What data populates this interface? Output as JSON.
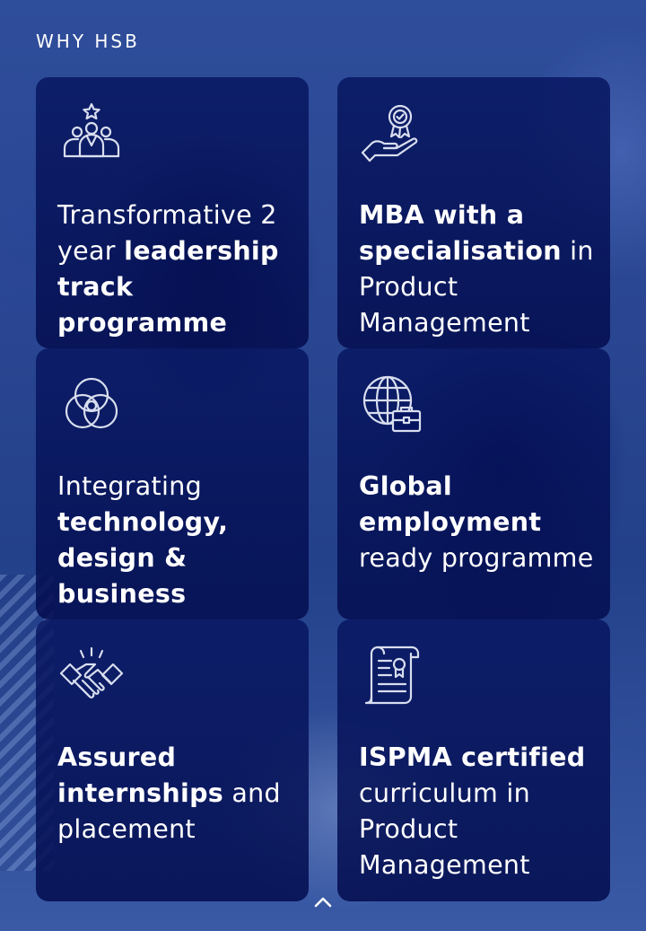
{
  "section": {
    "eyebrow": "WHY HSB"
  },
  "cards": [
    {
      "icon": "team-star-icon",
      "parts": [
        {
          "t": "Transformative 2 year ",
          "b": false
        },
        {
          "t": "leadership track programme",
          "b": true
        }
      ]
    },
    {
      "icon": "award-in-hand-icon",
      "parts": [
        {
          "t": "MBA with a specialisation",
          "b": true
        },
        {
          "t": " in Product Management",
          "b": false
        }
      ]
    },
    {
      "icon": "venn-circles-icon",
      "parts": [
        {
          "t": "Integrating ",
          "b": false
        },
        {
          "t": "technology, design & business",
          "b": true
        }
      ]
    },
    {
      "icon": "globe-briefcase-icon",
      "parts": [
        {
          "t": "Global employment",
          "b": true
        },
        {
          "t": " ready programme",
          "b": false
        }
      ]
    },
    {
      "icon": "handshake-icon",
      "parts": [
        {
          "t": "Assured internships",
          "b": true
        },
        {
          "t": " and placement",
          "b": false
        }
      ]
    },
    {
      "icon": "certificate-scroll-icon",
      "parts": [
        {
          "t": "ISPMA certified",
          "b": true
        },
        {
          "t": " curriculum in Product Management",
          "b": false
        }
      ]
    }
  ],
  "scroll_top": {
    "icon": "chevron-up-icon"
  },
  "colors": {
    "card_bg": "#06145f",
    "text": "#ffffff",
    "icon_stroke": "#d8deee"
  }
}
